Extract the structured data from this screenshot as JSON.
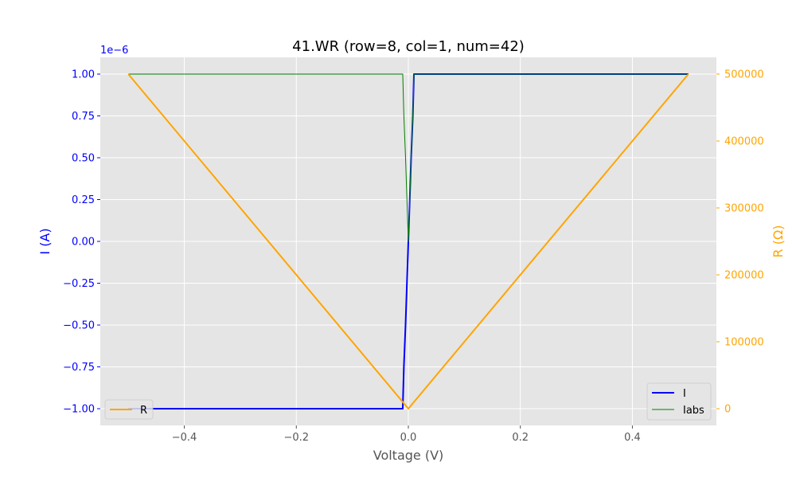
{
  "chart_data": {
    "type": "line",
    "title": "41.WR (row=8, col=1, num=42)",
    "xlabel": "Voltage (V)",
    "ylabel_left": "I (A)",
    "ylabel_right": "R (Ω)",
    "left_offset_text": "1e−6",
    "xlim": [
      -0.55,
      0.55
    ],
    "ylim_left": [
      -1.1e-06,
      1.1e-06
    ],
    "ylim_right": [
      -25000,
      525000
    ],
    "x_ticks": [
      -0.4,
      -0.2,
      0.0,
      0.2,
      0.4
    ],
    "x_tick_labels": [
      "−0.4",
      "−0.2",
      "0.0",
      "0.2",
      "0.4"
    ],
    "left_ticks": [
      -1.0,
      -0.75,
      -0.5,
      -0.25,
      0.0,
      0.25,
      0.5,
      0.75,
      1.0
    ],
    "left_tick_labels": [
      "−1.00",
      "−0.75",
      "−0.50",
      "−0.25",
      "0.00",
      "0.25",
      "0.50",
      "0.75",
      "1.00"
    ],
    "right_ticks": [
      0,
      100000,
      200000,
      300000,
      400000,
      500000
    ],
    "right_tick_labels": [
      "0",
      "100000",
      "200000",
      "300000",
      "400000",
      "500000"
    ],
    "grid": true,
    "series": [
      {
        "name": "I",
        "axis": "left",
        "color": "#0000ff",
        "width": 2,
        "x": [
          -0.5,
          -0.01,
          -0.008,
          -0.005,
          0.0,
          0.005,
          0.008,
          0.01,
          0.5
        ],
        "y": [
          -1e-06,
          -1e-06,
          -7.5e-07,
          -5e-07,
          0.0,
          5e-07,
          7.5e-07,
          1e-06,
          1e-06
        ]
      },
      {
        "name": "Iabs",
        "axis": "left",
        "color": "#008000",
        "width": 1,
        "x": [
          -0.5,
          -0.01,
          -0.008,
          -0.005,
          0.0,
          0.005,
          0.008,
          0.01,
          0.5
        ],
        "y": [
          1e-06,
          1e-06,
          7.5e-07,
          5e-07,
          0.0,
          5e-07,
          7.5e-07,
          1e-06,
          1e-06
        ]
      },
      {
        "name": "R",
        "axis": "right",
        "color": "#ffa500",
        "width": 2,
        "x": [
          -0.5,
          0.0,
          0.5
        ],
        "y": [
          500000,
          0,
          500000
        ]
      }
    ],
    "legend_left": {
      "position": "lower-left",
      "entries": [
        "R"
      ]
    },
    "legend_right": {
      "position": "lower-right",
      "entries": [
        "I",
        "Iabs"
      ]
    },
    "colors": {
      "plot_bg": "#e5e5e5",
      "grid": "#ffffff",
      "left_axis": "#0000ff",
      "right_axis": "#ffa500",
      "x_axis_text": "#555555"
    }
  }
}
